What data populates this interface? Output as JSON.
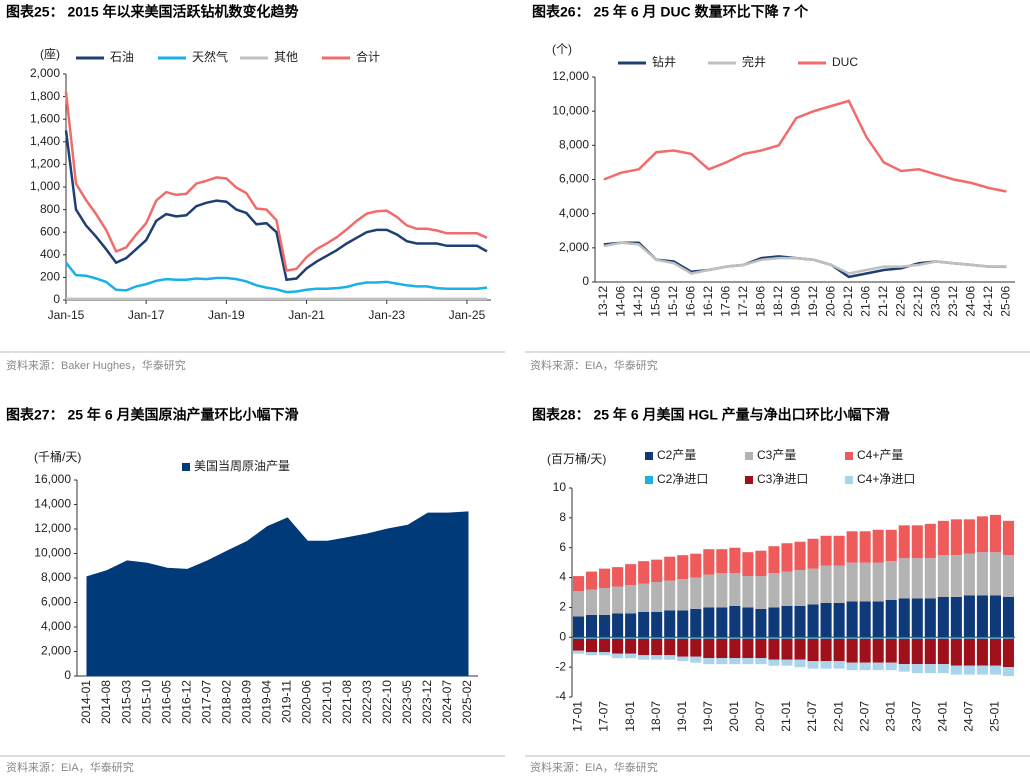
{
  "chart_data": [
    {
      "type": "line",
      "title": "图表25： 2015 年以来美国活跃钻机数变化趋势",
      "y_label": "(座)",
      "source": "资料来源：Baker Hughes，华泰研究",
      "legend": "top",
      "x": [
        2015,
        2015.25,
        2015.5,
        2015.75,
        2016,
        2016.25,
        2016.5,
        2016.75,
        2017,
        2017.25,
        2017.5,
        2017.75,
        2018,
        2018.25,
        2018.5,
        2018.75,
        2019,
        2019.25,
        2019.5,
        2019.75,
        2020,
        2020.25,
        2020.5,
        2020.75,
        2021,
        2021.25,
        2021.5,
        2021.75,
        2022,
        2022.25,
        2022.5,
        2022.75,
        2023,
        2023.25,
        2023.5,
        2023.75,
        2024,
        2024.25,
        2024.5,
        2024.75,
        2025,
        2025.25,
        2025.5
      ],
      "xlim": [
        2015,
        2025.6
      ],
      "xticks": [
        {
          "value": 2015,
          "label": "Jan-15"
        },
        {
          "value": 2017,
          "label": "Jan-17"
        },
        {
          "value": 2019,
          "label": "Jan-19"
        },
        {
          "value": 2021,
          "label": "Jan-21"
        },
        {
          "value": 2023,
          "label": "Jan-23"
        },
        {
          "value": 2025,
          "label": "Jan-25"
        }
      ],
      "ylim": [
        0,
        2000
      ],
      "yticks": [
        0,
        200,
        400,
        600,
        800,
        {
          "value": 1000,
          "label": "1,000"
        },
        {
          "value": 1200,
          "label": "1,200"
        },
        {
          "value": 1400,
          "label": "1,400"
        },
        {
          "value": 1600,
          "label": "1,600"
        },
        {
          "value": 1800,
          "label": "1,800"
        },
        {
          "value": 2000,
          "label": "2,000"
        }
      ],
      "series": [
        {
          "name": "石油",
          "color": "#1f3f73",
          "values": [
            1500,
            800,
            660,
            560,
            450,
            330,
            370,
            450,
            530,
            700,
            760,
            740,
            750,
            830,
            860,
            880,
            870,
            800,
            770,
            670,
            680,
            600,
            180,
            190,
            280,
            340,
            390,
            440,
            500,
            550,
            600,
            620,
            620,
            580,
            520,
            500,
            500,
            500,
            480,
            480,
            480,
            480,
            430
          ]
        },
        {
          "name": "天然气",
          "color": "#1ab0e8",
          "values": [
            330,
            220,
            215,
            190,
            160,
            90,
            85,
            120,
            140,
            170,
            185,
            180,
            180,
            190,
            185,
            195,
            195,
            185,
            165,
            130,
            110,
            95,
            70,
            75,
            90,
            100,
            100,
            105,
            115,
            140,
            155,
            155,
            160,
            145,
            130,
            120,
            120,
            105,
            100,
            100,
            100,
            100,
            110
          ]
        },
        {
          "name": "其他",
          "color": "#c0c0c0",
          "values": [
            10,
            10,
            10,
            10,
            10,
            10,
            10,
            10,
            10,
            10,
            10,
            10,
            10,
            10,
            10,
            10,
            10,
            10,
            10,
            10,
            10,
            10,
            10,
            10,
            10,
            10,
            10,
            10,
            10,
            10,
            10,
            10,
            10,
            10,
            10,
            10,
            10,
            10,
            10,
            10,
            10,
            10,
            10
          ]
        },
        {
          "name": "合计",
          "color": "#f26b6b",
          "values": [
            1840,
            1030,
            885,
            760,
            620,
            430,
            465,
            580,
            680,
            880,
            955,
            930,
            940,
            1030,
            1055,
            1085,
            1075,
            995,
            945,
            810,
            800,
            705,
            260,
            275,
            380,
            450,
            500,
            555,
            625,
            700,
            765,
            785,
            790,
            735,
            660,
            630,
            630,
            615,
            590,
            590,
            590,
            590,
            550
          ]
        }
      ]
    },
    {
      "type": "line",
      "title": "图表26： 25 年 6 月 DUC 数量环比下降 7 个",
      "y_label": "(个)",
      "source": "资料来源：EIA，华泰研究",
      "legend": "top",
      "categories": [
        "13-12",
        "14-06",
        "14-12",
        "15-06",
        "15-12",
        "16-06",
        "16-12",
        "17-06",
        "17-12",
        "18-06",
        "18-12",
        "19-06",
        "19-12",
        "20-06",
        "20-12",
        "21-06",
        "21-12",
        "22-06",
        "22-12",
        "23-06",
        "23-12",
        "24-06",
        "24-12",
        "25-06"
      ],
      "ylim": [
        0,
        12000
      ],
      "yticks": [
        0,
        {
          "value": 2000,
          "label": "2,000"
        },
        {
          "value": 4000,
          "label": "4,000"
        },
        {
          "value": 6000,
          "label": "6,000"
        },
        {
          "value": 8000,
          "label": "8,000"
        },
        {
          "value": 10000,
          "label": "10,000"
        },
        {
          "value": 12000,
          "label": "12,000"
        }
      ],
      "series": [
        {
          "name": "钻井",
          "color": "#1f3f73",
          "values": [
            2200,
            2300,
            2300,
            1300,
            1200,
            600,
            700,
            900,
            1000,
            1400,
            1500,
            1400,
            1300,
            1000,
            300,
            500,
            700,
            800,
            1100,
            1200,
            1100,
            1000,
            900,
            900
          ]
        },
        {
          "name": "完井",
          "color": "#c0c0c0",
          "values": [
            2100,
            2300,
            2200,
            1300,
            1100,
            500,
            700,
            900,
            1000,
            1300,
            1400,
            1400,
            1300,
            1000,
            500,
            700,
            900,
            900,
            1000,
            1200,
            1100,
            1000,
            900,
            900
          ]
        },
        {
          "name": "DUC",
          "color": "#f26b6b",
          "values": [
            6000,
            6400,
            6600,
            7600,
            7700,
            7500,
            6600,
            7000,
            7500,
            7700,
            8000,
            9600,
            10000,
            10300,
            10600,
            8500,
            7000,
            6500,
            6600,
            6300,
            6000,
            5800,
            5500,
            5300
          ]
        }
      ]
    },
    {
      "type": "area",
      "title": "图表27： 25 年 6 月美国原油产量环比小幅下滑",
      "y_label": "(千桶/天)",
      "source": "资料来源：EIA，华泰研究",
      "legend": "top",
      "categories": [
        "2014-01",
        "2014-08",
        "2015-03",
        "2015-10",
        "2016-05",
        "2016-12",
        "2017-07",
        "2018-02",
        "2018-09",
        "2019-04",
        "2019-11",
        "2020-06",
        "2021-01",
        "2021-08",
        "2022-03",
        "2022-10",
        "2023-05",
        "2023-12",
        "2024-07",
        "2025-02"
      ],
      "ylim": [
        0,
        16000
      ],
      "yticks": [
        0,
        {
          "value": 2000,
          "label": "2,000"
        },
        {
          "value": 4000,
          "label": "4,000"
        },
        {
          "value": 6000,
          "label": "6,000"
        },
        {
          "value": 8000,
          "label": "8,000"
        },
        {
          "value": 10000,
          "label": "10,000"
        },
        {
          "value": 12000,
          "label": "12,000"
        },
        {
          "value": 14000,
          "label": "14,000"
        },
        {
          "value": 16000,
          "label": "16,000"
        }
      ],
      "series": [
        {
          "name": "美国当周原油产量",
          "color": "#003a78",
          "values": [
            8100,
            8600,
            9400,
            9200,
            8800,
            8700,
            9400,
            10200,
            11000,
            12200,
            12900,
            11000,
            11000,
            11300,
            11600,
            12000,
            12300,
            13300,
            13300,
            13400
          ]
        }
      ]
    },
    {
      "type": "bar",
      "stacked": true,
      "title": "图表28： 25 年 6 月美国 HGL 产量与净出口环比小幅下滑",
      "y_label": "(百万桶/天)",
      "source": "资料来源：EIA，华泰研究",
      "legend": "top",
      "categories": [
        "17-01",
        null,
        "17-07",
        null,
        "18-01",
        null,
        "18-07",
        null,
        "19-01",
        null,
        "19-07",
        null,
        "20-01",
        null,
        "20-07",
        null,
        "21-01",
        null,
        "21-07",
        null,
        "22-01",
        null,
        "22-07",
        null,
        "23-01",
        null,
        "23-07",
        null,
        "24-01",
        null,
        "24-07",
        null,
        "25-01",
        null
      ],
      "ylim": [
        -4,
        10
      ],
      "yticks": [
        -4,
        -2,
        0,
        2,
        4,
        6,
        8,
        10
      ],
      "series": [
        {
          "name": "C2产量",
          "color": "#0e3a7a",
          "values": [
            1.4,
            1.5,
            1.5,
            1.6,
            1.6,
            1.7,
            1.7,
            1.8,
            1.8,
            1.9,
            2.0,
            2.0,
            2.1,
            2.0,
            1.9,
            2.0,
            2.1,
            2.1,
            2.2,
            2.3,
            2.3,
            2.4,
            2.4,
            2.4,
            2.5,
            2.6,
            2.6,
            2.6,
            2.7,
            2.7,
            2.8,
            2.8,
            2.8,
            2.7
          ]
        },
        {
          "name": "C3产量",
          "color": "#b3b3b3",
          "values": [
            1.7,
            1.7,
            1.8,
            1.8,
            1.9,
            1.9,
            2.0,
            2.0,
            2.1,
            2.1,
            2.2,
            2.3,
            2.2,
            2.1,
            2.2,
            2.3,
            2.3,
            2.4,
            2.4,
            2.5,
            2.5,
            2.6,
            2.6,
            2.6,
            2.6,
            2.7,
            2.7,
            2.7,
            2.8,
            2.8,
            2.8,
            2.9,
            2.9,
            2.8
          ]
        },
        {
          "name": "C4+产量",
          "color": "#ef5b5b",
          "values": [
            1.0,
            1.2,
            1.3,
            1.3,
            1.4,
            1.5,
            1.5,
            1.6,
            1.6,
            1.6,
            1.7,
            1.6,
            1.7,
            1.6,
            1.7,
            1.8,
            1.9,
            1.9,
            2.0,
            2.0,
            2.0,
            2.1,
            2.1,
            2.2,
            2.1,
            2.2,
            2.2,
            2.3,
            2.3,
            2.4,
            2.3,
            2.4,
            2.5,
            2.3
          ]
        },
        {
          "name": "C2净进口",
          "color": "#19b5d8",
          "values": [
            -0.1,
            -0.1,
            -0.1,
            -0.1,
            -0.1,
            -0.1,
            -0.1,
            -0.1,
            -0.1,
            -0.1,
            -0.1,
            -0.1,
            -0.1,
            -0.1,
            -0.1,
            -0.1,
            -0.1,
            -0.1,
            -0.1,
            -0.1,
            -0.1,
            -0.1,
            -0.1,
            -0.1,
            -0.1,
            -0.1,
            -0.1,
            -0.1,
            -0.1,
            -0.1,
            -0.1,
            -0.1,
            -0.1,
            -0.1
          ]
        },
        {
          "name": "C3净进口",
          "color": "#a0101a",
          "values": [
            -0.8,
            -0.9,
            -0.9,
            -1.0,
            -1.0,
            -1.1,
            -1.1,
            -1.1,
            -1.2,
            -1.2,
            -1.3,
            -1.3,
            -1.3,
            -1.3,
            -1.3,
            -1.4,
            -1.4,
            -1.4,
            -1.5,
            -1.5,
            -1.5,
            -1.6,
            -1.6,
            -1.6,
            -1.6,
            -1.7,
            -1.7,
            -1.7,
            -1.7,
            -1.8,
            -1.8,
            -1.8,
            -1.8,
            -1.9
          ]
        },
        {
          "name": "C4+净进口",
          "color": "#a9d4ec",
          "values": [
            -0.2,
            -0.2,
            -0.2,
            -0.3,
            -0.3,
            -0.3,
            -0.3,
            -0.3,
            -0.3,
            -0.4,
            -0.4,
            -0.4,
            -0.4,
            -0.4,
            -0.4,
            -0.4,
            -0.4,
            -0.5,
            -0.5,
            -0.5,
            -0.5,
            -0.5,
            -0.5,
            -0.5,
            -0.5,
            -0.5,
            -0.6,
            -0.6,
            -0.6,
            -0.6,
            -0.6,
            -0.6,
            -0.6,
            -0.6
          ]
        }
      ]
    }
  ]
}
